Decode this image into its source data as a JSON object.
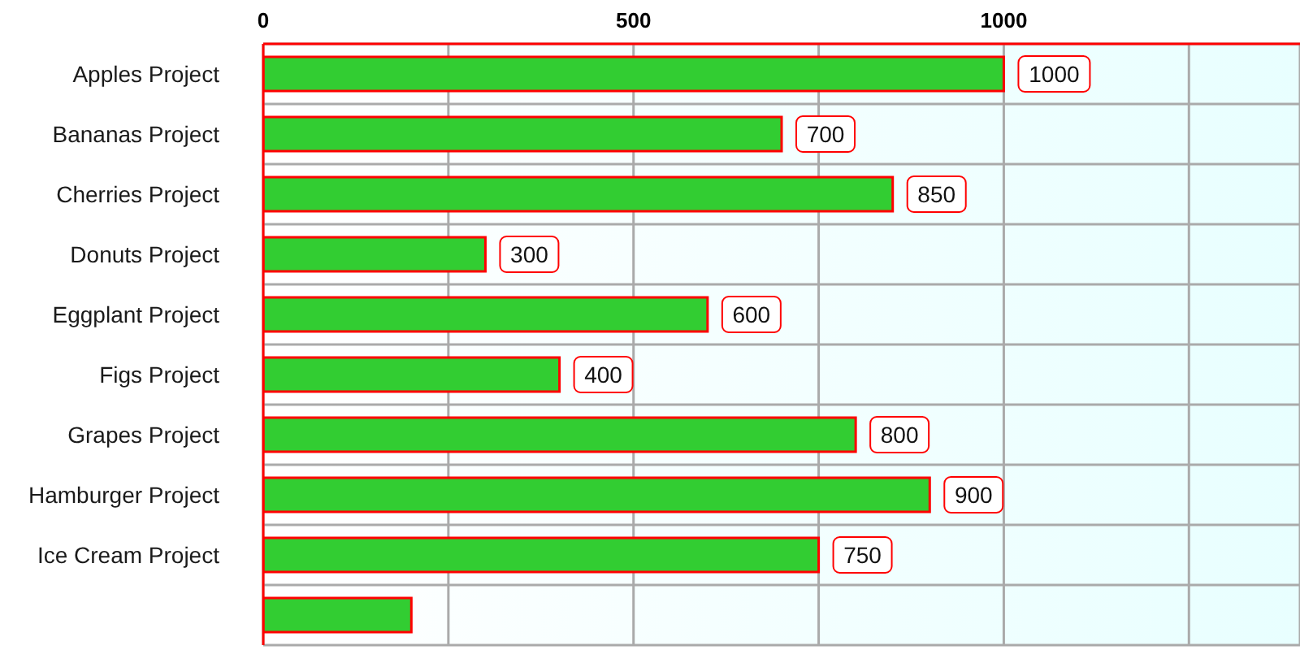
{
  "chart_data": {
    "type": "bar",
    "orientation": "horizontal",
    "categories": [
      "Apples Project",
      "Bananas Project",
      "Cherries Project",
      "Donuts Project",
      "Eggplant Project",
      "Figs Project",
      "Grapes Project",
      "Hamburger Project",
      "Ice Cream Project",
      null
    ],
    "values": [
      1000,
      700,
      850,
      300,
      600,
      400,
      800,
      900,
      750,
      200
    ],
    "value_labels": [
      "1000",
      "700",
      "850",
      "300",
      "600",
      "400",
      "800",
      "900",
      "750",
      null
    ],
    "color": "#32cd32",
    "xlim": [
      0,
      1400
    ],
    "xticks": [
      0,
      {
        "value": 250,
        "label": null
      },
      500,
      {
        "value": 750,
        "label": null
      },
      1000,
      {
        "value": 1250,
        "label": null
      }
    ],
    "grid": true
  }
}
